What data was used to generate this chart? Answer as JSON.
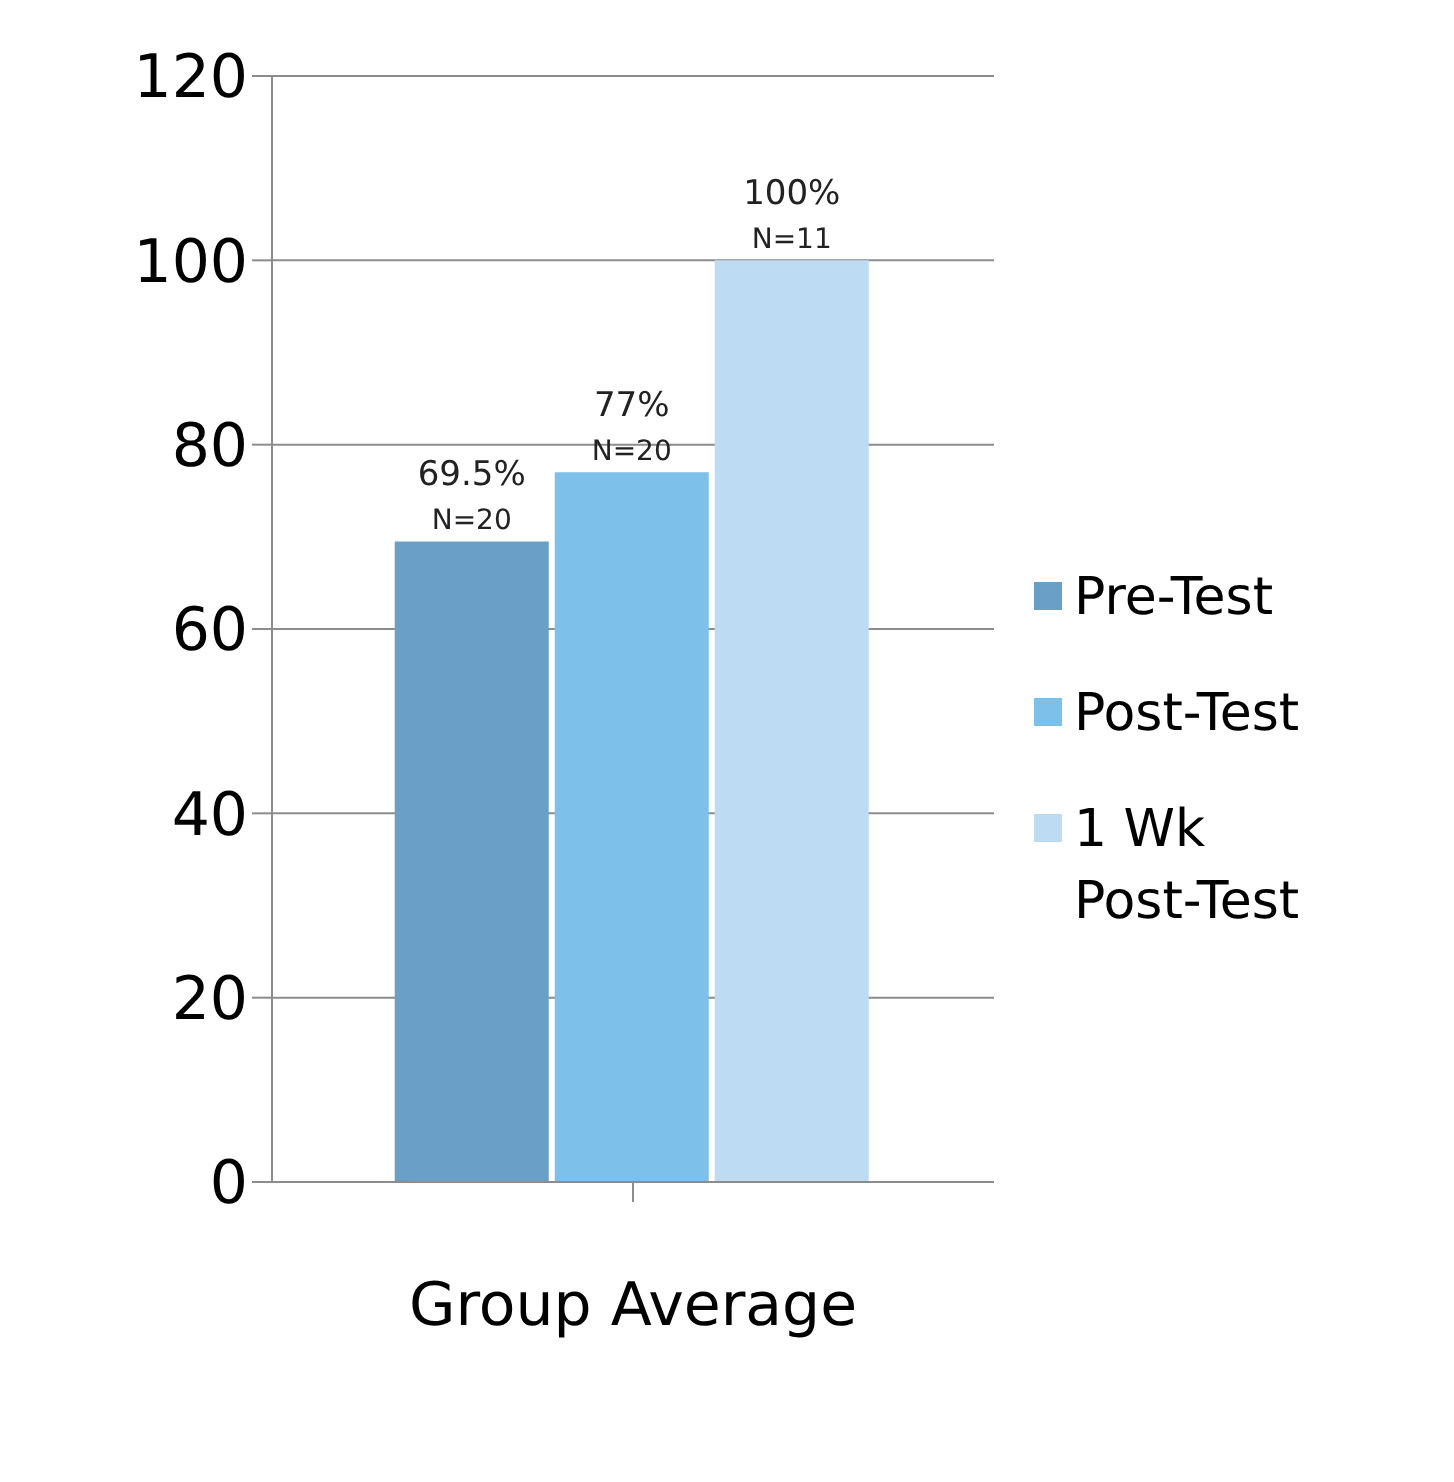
{
  "chart_data": {
    "type": "bar",
    "categories": [
      "Group Average"
    ],
    "series": [
      {
        "name": "Pre-Test",
        "color": "#6aa0c8",
        "values": [
          69.5
        ],
        "value_labels": [
          "69.5%\nN=20"
        ]
      },
      {
        "name": "Post-Test",
        "color": "#7dc0ea",
        "values": [
          77
        ],
        "value_labels": [
          "77%\nN=20"
        ]
      },
      {
        "name": "1 Wk Post-Test",
        "color": "#bddbf3",
        "values": [
          100
        ],
        "value_labels": [
          "100%\nN=11"
        ]
      }
    ],
    "ylim": [
      0,
      120
    ],
    "yticks": [
      0,
      20,
      40,
      60,
      80,
      100,
      120
    ],
    "grid": "y",
    "legend": "right"
  }
}
